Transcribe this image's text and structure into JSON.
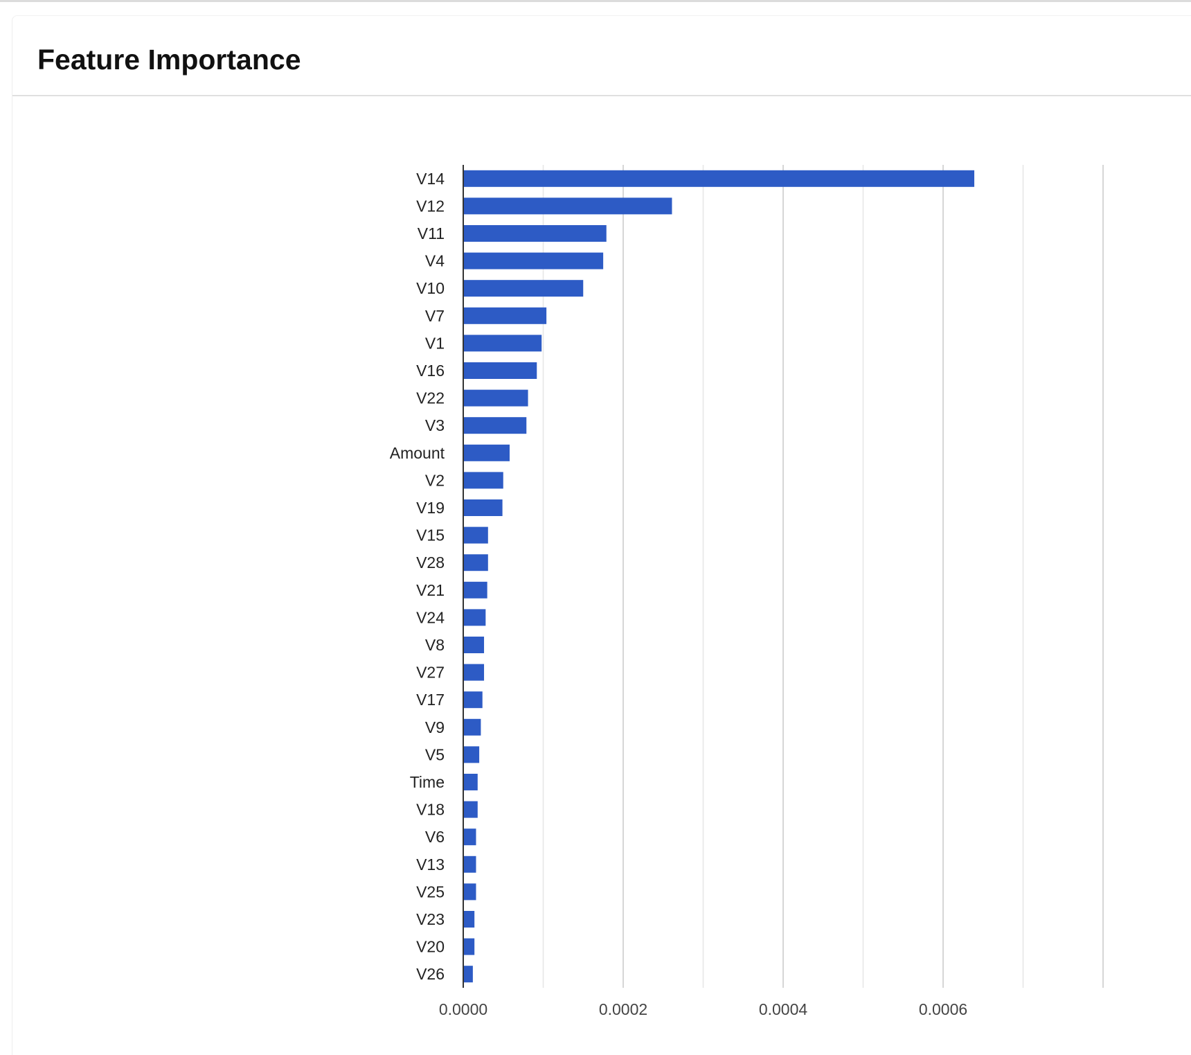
{
  "card": {
    "title": "Feature Importance"
  },
  "chart_data": {
    "type": "bar",
    "orientation": "horizontal",
    "title": "",
    "xlabel": "",
    "ylabel": "",
    "color": "#2d5bc5",
    "xlim": [
      0,
      0.0008
    ],
    "x_tick_labels": [
      "0.0000",
      "0.0002",
      "0.0004",
      "0.0006"
    ],
    "x_tick_values": [
      0,
      0.0002,
      0.0004,
      0.0006
    ],
    "grid": true,
    "categories": [
      "V14",
      "V12",
      "V11",
      "V4",
      "V10",
      "V7",
      "V1",
      "V16",
      "V22",
      "V3",
      "Amount",
      "V2",
      "V19",
      "V15",
      "V28",
      "V21",
      "V24",
      "V8",
      "V27",
      "V17",
      "V9",
      "V5",
      "Time",
      "V18",
      "V6",
      "V13",
      "V25",
      "V23",
      "V20",
      "V26"
    ],
    "values": [
      0.000639,
      0.000261,
      0.000179,
      0.000175,
      0.00015,
      0.000104,
      9.8e-05,
      9.2e-05,
      8.1e-05,
      7.9e-05,
      5.8e-05,
      5e-05,
      4.9e-05,
      3.1e-05,
      3.1e-05,
      3e-05,
      2.8e-05,
      2.6e-05,
      2.6e-05,
      2.4e-05,
      2.2e-05,
      2e-05,
      1.8e-05,
      1.8e-05,
      1.6e-05,
      1.6e-05,
      1.6e-05,
      1.4e-05,
      1.4e-05,
      1.2e-05
    ]
  }
}
